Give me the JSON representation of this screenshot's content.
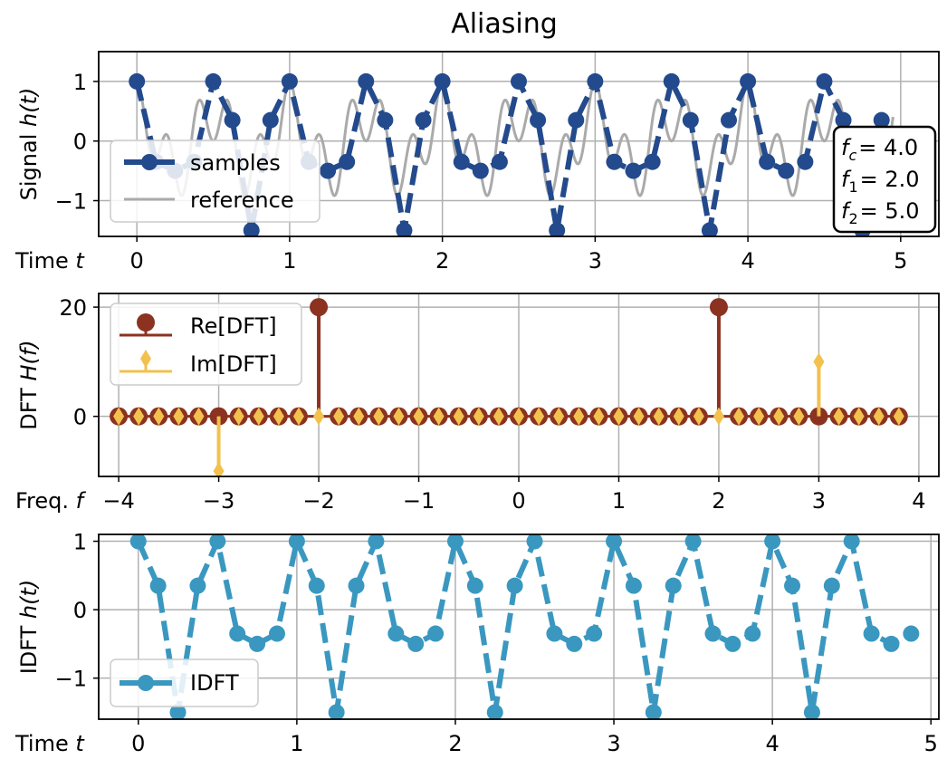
{
  "figure": {
    "title": "Aliasing"
  },
  "chart_data": [
    {
      "type": "line",
      "panel": "top",
      "xlabel_prefix": "Time",
      "xlabel_var": "t",
      "ylabel_prefix": "Signal",
      "ylabel_var": "h(t)",
      "xlim": [
        -0.25,
        5.25
      ],
      "ylim": [
        -1.6,
        1.5
      ],
      "xticks": [
        0,
        1,
        2,
        3,
        4,
        5
      ],
      "yticks": [
        1,
        0,
        -1
      ],
      "ytick_labels": [
        "1",
        "0",
        "−1"
      ],
      "grid": true,
      "legend_position": "lower-left",
      "series": [
        {
          "name": "samples",
          "color": "#234a8c",
          "style": "dashed-with-markers",
          "x": [
            0,
            0.125,
            0.25,
            0.375,
            0.5,
            0.625,
            0.75,
            0.875,
            1.0,
            1.125,
            1.25,
            1.375,
            1.5,
            1.625,
            1.75,
            1.875,
            2.0,
            2.125,
            2.25,
            2.375,
            2.5,
            2.625,
            2.75,
            2.875,
            3.0,
            3.125,
            3.25,
            3.375,
            3.5,
            3.625,
            3.75,
            3.875,
            4.0,
            4.125,
            4.25,
            4.375,
            4.5,
            4.625,
            4.75,
            4.875
          ],
          "y": [
            1.0,
            -0.35,
            -0.5,
            -0.35,
            1.0,
            0.35,
            -1.5,
            0.35,
            1.0,
            -0.35,
            -0.5,
            -0.35,
            1.0,
            0.35,
            -1.5,
            0.35,
            1.0,
            -0.35,
            -0.5,
            -0.35,
            1.0,
            0.35,
            -1.5,
            0.35,
            1.0,
            -0.35,
            -0.5,
            -0.35,
            1.0,
            0.35,
            -1.5,
            0.35,
            1.0,
            -0.35,
            -0.5,
            -0.35,
            1.0,
            0.35,
            -1.5,
            0.35
          ]
        },
        {
          "name": "reference",
          "color": "#aaaaaa",
          "style": "solid",
          "function": "0.5*cos(2*pi*2*t) + 0.5*cos(2*pi*5*t)",
          "x_range": [
            0,
            4.95
          ]
        }
      ],
      "annotation": {
        "lines": [
          {
            "sym": "f",
            "sub": "c",
            "value": "= 4.0"
          },
          {
            "sym": "f",
            "sub": "1",
            "value": "= 2.0"
          },
          {
            "sym": "f",
            "sub": "2",
            "value": "= 5.0"
          }
        ]
      }
    },
    {
      "type": "stem",
      "panel": "middle",
      "xlabel_prefix": "Freq.",
      "xlabel_var": "f",
      "ylabel_prefix": "DFT",
      "ylabel_var": "H(f)",
      "xlim": [
        -4.2,
        4.2
      ],
      "ylim": [
        -11,
        22.5
      ],
      "xticks": [
        -4,
        -3,
        -2,
        -1,
        0,
        1,
        2,
        3,
        4
      ],
      "xtick_labels": [
        "−4",
        "−3",
        "−2",
        "−1",
        "0",
        "1",
        "2",
        "3",
        "4"
      ],
      "yticks": [
        20,
        0
      ],
      "ytick_labels": [
        "20",
        "0"
      ],
      "grid": true,
      "legend_position": "upper-left",
      "series": [
        {
          "name": "Re[DFT]",
          "color": "#8b3220",
          "marker": "circle",
          "x_start": -4.0,
          "x_step": 0.2,
          "count": 40,
          "nonzero": [
            {
              "x": -2.0,
              "y": 20
            },
            {
              "x": 2.0,
              "y": 20
            }
          ]
        },
        {
          "name": "Im[DFT]",
          "color": "#f2c14e",
          "marker": "diamond",
          "x_start": -4.0,
          "x_step": 0.2,
          "count": 40,
          "nonzero": [
            {
              "x": -3.0,
              "y": -10
            },
            {
              "x": 3.0,
              "y": 10
            }
          ]
        }
      ]
    },
    {
      "type": "line",
      "panel": "bottom",
      "xlabel_prefix": "Time",
      "xlabel_var": "t",
      "ylabel_prefix": "IDFT",
      "ylabel_var": "h(t)",
      "xlim": [
        -0.25,
        5.05
      ],
      "ylim": [
        -1.6,
        1.1
      ],
      "xticks": [
        0,
        1,
        2,
        3,
        4,
        5
      ],
      "yticks": [
        1,
        0,
        -1
      ],
      "ytick_labels": [
        "1",
        "0",
        "−1"
      ],
      "grid": true,
      "legend_position": "lower-left",
      "series": [
        {
          "name": "IDFT",
          "color": "#3a98c0",
          "style": "dashed-with-markers",
          "x": [
            0,
            0.125,
            0.25,
            0.375,
            0.5,
            0.625,
            0.75,
            0.875,
            1.0,
            1.125,
            1.25,
            1.375,
            1.5,
            1.625,
            1.75,
            1.875,
            2.0,
            2.125,
            2.25,
            2.375,
            2.5,
            2.625,
            2.75,
            2.875,
            3.0,
            3.125,
            3.25,
            3.375,
            3.5,
            3.625,
            3.75,
            3.875,
            4.0,
            4.125,
            4.25,
            4.375,
            4.5,
            4.625,
            4.75,
            4.875
          ],
          "y": [
            1.0,
            0.35,
            -1.5,
            0.35,
            1.0,
            -0.35,
            -0.5,
            -0.35,
            1.0,
            0.35,
            -1.5,
            0.35,
            1.0,
            -0.35,
            -0.5,
            -0.35,
            1.0,
            0.35,
            -1.5,
            0.35,
            1.0,
            -0.35,
            -0.5,
            -0.35,
            1.0,
            0.35,
            -1.5,
            0.35,
            1.0,
            -0.35,
            -0.5,
            -0.35,
            1.0,
            0.35,
            -1.5,
            0.35,
            1.0,
            -0.35,
            -0.5,
            -0.35
          ]
        }
      ]
    }
  ]
}
